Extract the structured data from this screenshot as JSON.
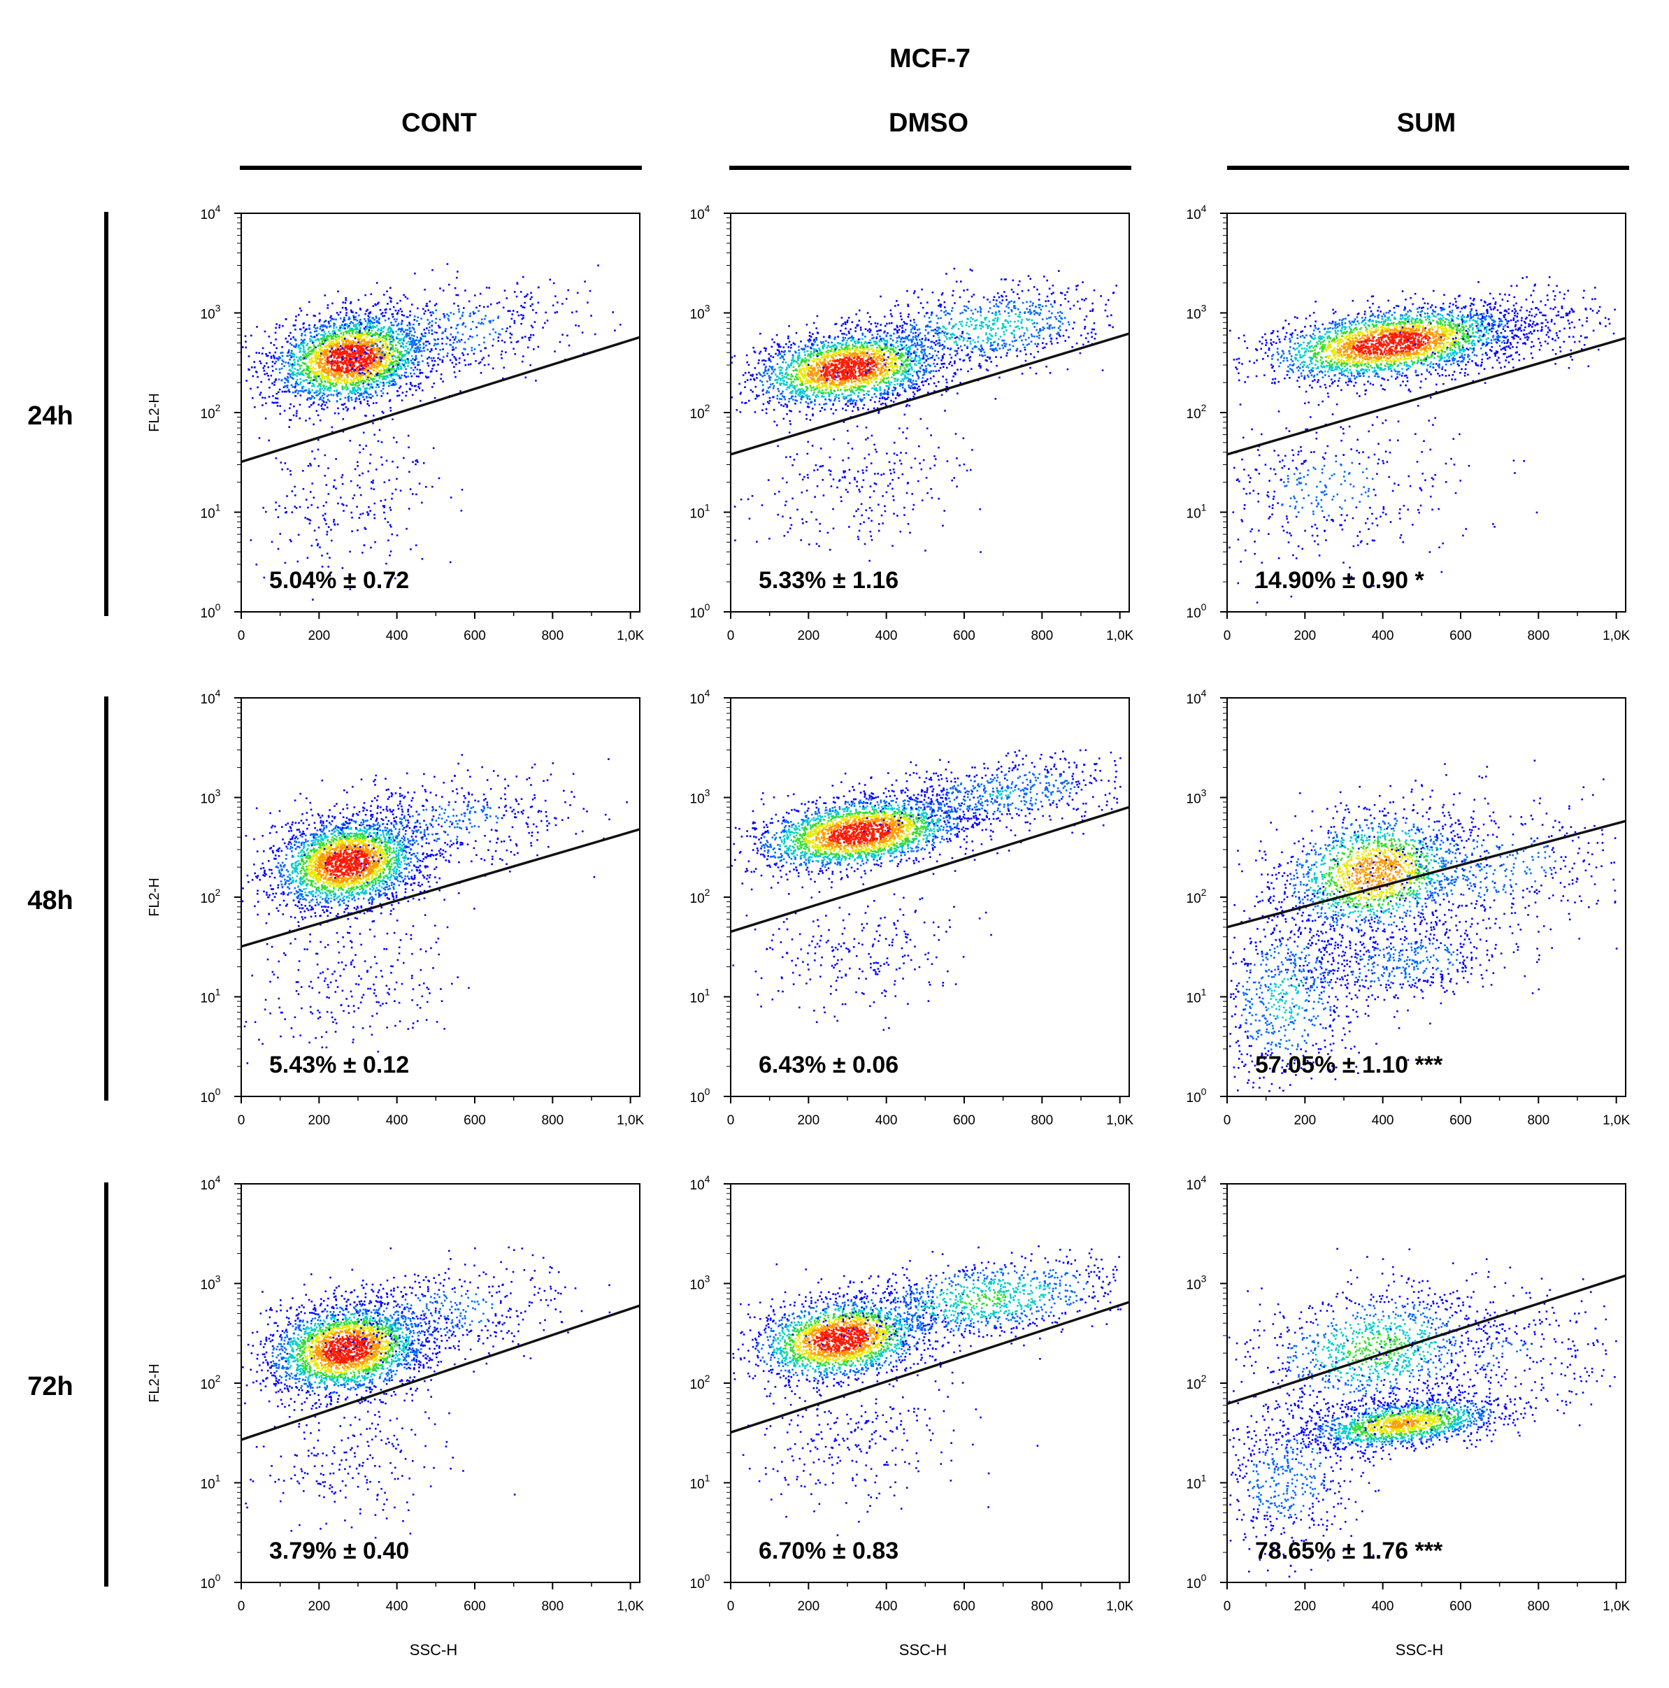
{
  "chart_data": {
    "type": "scatter",
    "title": "MCF-7",
    "column_labels": [
      "CONT",
      "DMSO",
      "SUM"
    ],
    "row_labels": [
      "24h",
      "48h",
      "72h"
    ],
    "xlabel": "SSC-H",
    "ylabel": "FL2-H",
    "x_ticks": [
      "0",
      "200",
      "400",
      "600",
      "800",
      "1,0K"
    ],
    "x_tick_values": [
      0,
      200,
      400,
      600,
      800,
      1000
    ],
    "x_range": [
      0,
      1024
    ],
    "y_scale": "log",
    "y_ticks": [
      {
        "base": "10",
        "exp": "0"
      },
      {
        "base": "10",
        "exp": "1"
      },
      {
        "base": "10",
        "exp": "2"
      },
      {
        "base": "10",
        "exp": "3"
      },
      {
        "base": "10",
        "exp": "4"
      }
    ],
    "y_range_log10": [
      0,
      4
    ],
    "panels": [
      {
        "row": 0,
        "col": 0,
        "stat": "5.04% ± 0.72",
        "gate": {
          "x0": 0,
          "y0": 32,
          "x1": 1024,
          "y1": 570
        },
        "clusters": [
          {
            "cx": 280,
            "cy": 2.55,
            "sx": 100,
            "sy": 0.22,
            "w": 0.78
          },
          {
            "cx": 500,
            "cy": 2.8,
            "sx": 180,
            "sy": 0.25,
            "w": 0.15
          },
          {
            "cx": 280,
            "cy": 1.15,
            "sx": 120,
            "sy": 0.35,
            "w": 0.07
          }
        ]
      },
      {
        "row": 0,
        "col": 1,
        "stat": "5.33% ± 1.16",
        "gate": {
          "x0": 0,
          "y0": 38,
          "x1": 1024,
          "y1": 620
        },
        "clusters": [
          {
            "cx": 300,
            "cy": 2.45,
            "sx": 120,
            "sy": 0.18,
            "w": 0.7
          },
          {
            "cx": 650,
            "cy": 2.85,
            "sx": 170,
            "sy": 0.2,
            "w": 0.23
          },
          {
            "cx": 330,
            "cy": 1.3,
            "sx": 140,
            "sy": 0.3,
            "w": 0.07
          }
        ]
      },
      {
        "row": 0,
        "col": 2,
        "stat": "14.90% ± 0.90 *",
        "gate": {
          "x0": 0,
          "y0": 38,
          "x1": 1024,
          "y1": 560
        },
        "clusters": [
          {
            "cx": 420,
            "cy": 2.7,
            "sx": 160,
            "sy": 0.17,
            "w": 0.8
          },
          {
            "cx": 750,
            "cy": 2.85,
            "sx": 130,
            "sy": 0.18,
            "w": 0.08
          },
          {
            "cx": 250,
            "cy": 1.25,
            "sx": 180,
            "sy": 0.4,
            "w": 0.12
          }
        ]
      },
      {
        "row": 1,
        "col": 0,
        "stat": "5.43% ± 0.12",
        "gate": {
          "x0": 0,
          "y0": 32,
          "x1": 1024,
          "y1": 480
        },
        "clusters": [
          {
            "cx": 270,
            "cy": 2.35,
            "sx": 95,
            "sy": 0.22,
            "w": 0.8
          },
          {
            "cx": 520,
            "cy": 2.75,
            "sx": 180,
            "sy": 0.25,
            "w": 0.13
          },
          {
            "cx": 270,
            "cy": 1.15,
            "sx": 130,
            "sy": 0.35,
            "w": 0.07
          }
        ]
      },
      {
        "row": 1,
        "col": 1,
        "stat": "6.43% ± 0.06",
        "gate": {
          "x0": 0,
          "y0": 45,
          "x1": 1024,
          "y1": 800
        },
        "clusters": [
          {
            "cx": 330,
            "cy": 2.65,
            "sx": 130,
            "sy": 0.17,
            "w": 0.75
          },
          {
            "cx": 700,
            "cy": 3.05,
            "sx": 160,
            "sy": 0.17,
            "w": 0.18
          },
          {
            "cx": 320,
            "cy": 1.4,
            "sx": 150,
            "sy": 0.3,
            "w": 0.07
          }
        ]
      },
      {
        "row": 1,
        "col": 2,
        "stat": "57.05% ± 1.10 ***",
        "gate": {
          "x0": 0,
          "y0": 50,
          "x1": 1024,
          "y1": 580
        },
        "clusters": [
          {
            "cx": 380,
            "cy": 2.25,
            "sx": 120,
            "sy": 0.3,
            "w": 0.5
          },
          {
            "cx": 650,
            "cy": 2.3,
            "sx": 200,
            "sy": 0.3,
            "w": 0.15
          },
          {
            "cx": 450,
            "cy": 1.35,
            "sx": 150,
            "sy": 0.2,
            "w": 0.15
          },
          {
            "cx": 150,
            "cy": 1.0,
            "sx": 100,
            "sy": 0.45,
            "w": 0.2
          }
        ]
      },
      {
        "row": 2,
        "col": 0,
        "stat": "3.79% ± 0.40",
        "gate": {
          "x0": 0,
          "y0": 27,
          "x1": 1024,
          "y1": 600
        },
        "clusters": [
          {
            "cx": 270,
            "cy": 2.35,
            "sx": 100,
            "sy": 0.22,
            "w": 0.8
          },
          {
            "cx": 500,
            "cy": 2.7,
            "sx": 170,
            "sy": 0.25,
            "w": 0.14
          },
          {
            "cx": 300,
            "cy": 1.2,
            "sx": 130,
            "sy": 0.3,
            "w": 0.06
          }
        ]
      },
      {
        "row": 2,
        "col": 1,
        "stat": "6.70% ± 0.83",
        "gate": {
          "x0": 0,
          "y0": 32,
          "x1": 1024,
          "y1": 650
        },
        "clusters": [
          {
            "cx": 280,
            "cy": 2.45,
            "sx": 110,
            "sy": 0.2,
            "w": 0.65
          },
          {
            "cx": 650,
            "cy": 2.85,
            "sx": 180,
            "sy": 0.2,
            "w": 0.28
          },
          {
            "cx": 300,
            "cy": 1.4,
            "sx": 140,
            "sy": 0.3,
            "w": 0.07
          }
        ]
      },
      {
        "row": 2,
        "col": 2,
        "stat": "78.65% ± 1.76 ***",
        "gate": {
          "x0": 0,
          "y0": 62,
          "x1": 1024,
          "y1": 1200
        },
        "clusters": [
          {
            "cx": 450,
            "cy": 1.6,
            "sx": 130,
            "sy": 0.12,
            "w": 0.45
          },
          {
            "cx": 380,
            "cy": 2.35,
            "sx": 150,
            "sy": 0.3,
            "w": 0.3
          },
          {
            "cx": 700,
            "cy": 2.3,
            "sx": 200,
            "sy": 0.35,
            "w": 0.1
          },
          {
            "cx": 150,
            "cy": 1.05,
            "sx": 100,
            "sy": 0.4,
            "w": 0.15
          }
        ]
      }
    ]
  }
}
